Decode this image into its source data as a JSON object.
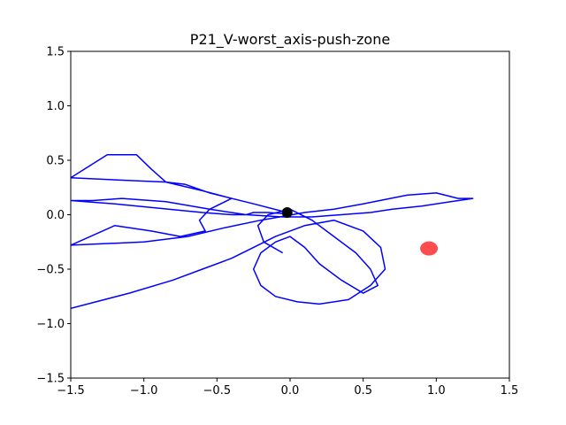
{
  "chart_data": {
    "type": "line",
    "title": "P21_V-worst_axis-push-zone",
    "xlabel": "",
    "ylabel": "",
    "xlim": [
      -1.5,
      1.5
    ],
    "ylim": [
      -1.5,
      1.5
    ],
    "xticks": [
      -1.5,
      -1.0,
      -0.5,
      0.0,
      0.5,
      1.0,
      1.5
    ],
    "xtick_labels": [
      "−1.5",
      "−1.0",
      "−0.5",
      "0.0",
      "0.5",
      "1.0",
      "1.5"
    ],
    "yticks": [
      1.5,
      1.0,
      0.5,
      0.0,
      -0.5,
      -1.0,
      -1.5
    ],
    "ytick_labels": [
      "1.5",
      "1.0",
      "0.5",
      "0.0",
      "−0.5",
      "−1.0",
      "−1.5"
    ],
    "grid": false,
    "line_color": "#0000ff",
    "trajectory": {
      "x": [
        -0.02,
        -0.25,
        -0.55,
        -0.72,
        -0.85,
        -0.95,
        -1.05,
        -1.25,
        -1.5,
        -1.2,
        -0.85,
        -0.6,
        -0.4,
        -0.55,
        -0.62,
        -0.58,
        -0.75,
        -0.95,
        -1.2,
        -1.5,
        -1.0,
        -0.7,
        -0.45,
        -0.2,
        0.1,
        0.3,
        0.5,
        0.8,
        1.0,
        1.15,
        1.25,
        1.1,
        0.9,
        0.7,
        0.55,
        0.35,
        0.15,
        -0.05,
        -0.3,
        -0.55,
        -0.85,
        -1.15,
        -1.35,
        -1.5,
        -1.2,
        -0.9,
        -0.6,
        -0.4,
        -0.3,
        -0.25,
        -0.15,
        -0.05,
        0.02
      ],
      "y": [
        0.02,
        0.1,
        0.2,
        0.28,
        0.3,
        0.42,
        0.55,
        0.55,
        0.34,
        0.32,
        0.3,
        0.22,
        0.15,
        0.05,
        -0.05,
        -0.15,
        -0.2,
        -0.15,
        -0.1,
        -0.28,
        -0.25,
        -0.2,
        -0.12,
        -0.05,
        0.02,
        0.05,
        0.1,
        0.18,
        0.2,
        0.15,
        0.15,
        0.12,
        0.08,
        0.05,
        0.02,
        0.0,
        -0.02,
        -0.02,
        0.0,
        0.05,
        0.12,
        0.15,
        0.13,
        0.13,
        0.1,
        0.06,
        0.02,
        0.0,
        0.0,
        0.02,
        0.02,
        0.01,
        0.0
      ]
    },
    "trajectory2": {
      "x": [
        -1.5,
        -1.1,
        -0.8,
        -0.6,
        -0.4,
        -0.25,
        -0.1,
        0.1,
        0.3,
        0.5,
        0.62,
        0.65,
        0.55,
        0.4,
        0.2,
        0.05,
        -0.1,
        -0.2,
        -0.25,
        -0.2,
        -0.1,
        0.0,
        0.1,
        0.2,
        0.35,
        0.5,
        0.6,
        0.55,
        0.45,
        0.3,
        0.15,
        0.0,
        -0.15,
        -0.22,
        -0.18,
        -0.05
      ],
      "y": [
        -0.86,
        -0.72,
        -0.6,
        -0.5,
        -0.4,
        -0.3,
        -0.2,
        -0.1,
        -0.05,
        -0.15,
        -0.3,
        -0.5,
        -0.65,
        -0.78,
        -0.82,
        -0.8,
        -0.75,
        -0.65,
        -0.5,
        -0.35,
        -0.25,
        -0.2,
        -0.3,
        -0.45,
        -0.6,
        -0.72,
        -0.65,
        -0.5,
        -0.35,
        -0.2,
        -0.05,
        0.05,
        0.0,
        -0.1,
        -0.25,
        -0.35
      ]
    },
    "start_marker": {
      "x": -0.02,
      "y": 0.02,
      "color": "#000000"
    },
    "target_marker": {
      "x": 0.95,
      "y": -0.31,
      "color": "#ff0000",
      "opacity": 0.7
    }
  }
}
